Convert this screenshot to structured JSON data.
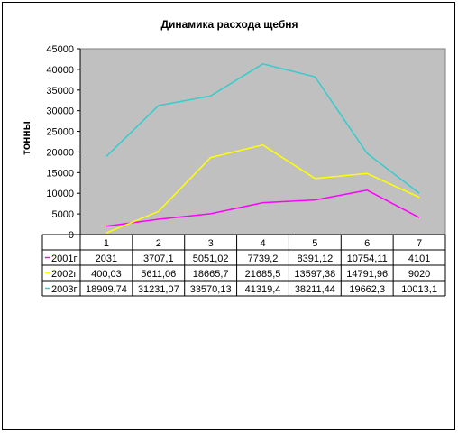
{
  "chart_data": {
    "type": "line",
    "title": "Динамика расхода  щебня",
    "xlabel": "",
    "ylabel": "тонны",
    "categories": [
      "1",
      "2",
      "3",
      "4",
      "5",
      "6",
      "7"
    ],
    "ylim": [
      0,
      45000
    ],
    "yticks": [
      "0",
      "5000",
      "10000",
      "15000",
      "20000",
      "25000",
      "30000",
      "35000",
      "40000",
      "45000"
    ],
    "grid": false,
    "plot_background": "#C0C0C0",
    "series": [
      {
        "name": "2001г",
        "color": "#FF00FF",
        "values": [
          2031,
          3707.1,
          5051.02,
          7739.2,
          8391.12,
          10754.11,
          4101
        ],
        "labels": [
          "2031",
          "3707,1",
          "5051,02",
          "7739,2",
          "8391,12",
          "10754,11",
          "4101"
        ]
      },
      {
        "name": "2002г",
        "color": "#FFFF00",
        "values": [
          400.03,
          5611.06,
          18665.7,
          21685.5,
          13597.38,
          14791.96,
          9020
        ],
        "labels": [
          "400,03",
          "5611,06",
          "18665,7",
          "21685,5",
          "13597,38",
          "14791,96",
          "9020"
        ]
      },
      {
        "name": "2003г",
        "color": "#33CCCC",
        "values": [
          18909.74,
          31231.07,
          33570.13,
          41319.4,
          38211.44,
          19662.3,
          10013.1
        ],
        "labels": [
          "18909,74",
          "31231,07",
          "33570,13",
          "41319,4",
          "38211,44",
          "19662,3",
          "10013,1"
        ]
      }
    ]
  }
}
